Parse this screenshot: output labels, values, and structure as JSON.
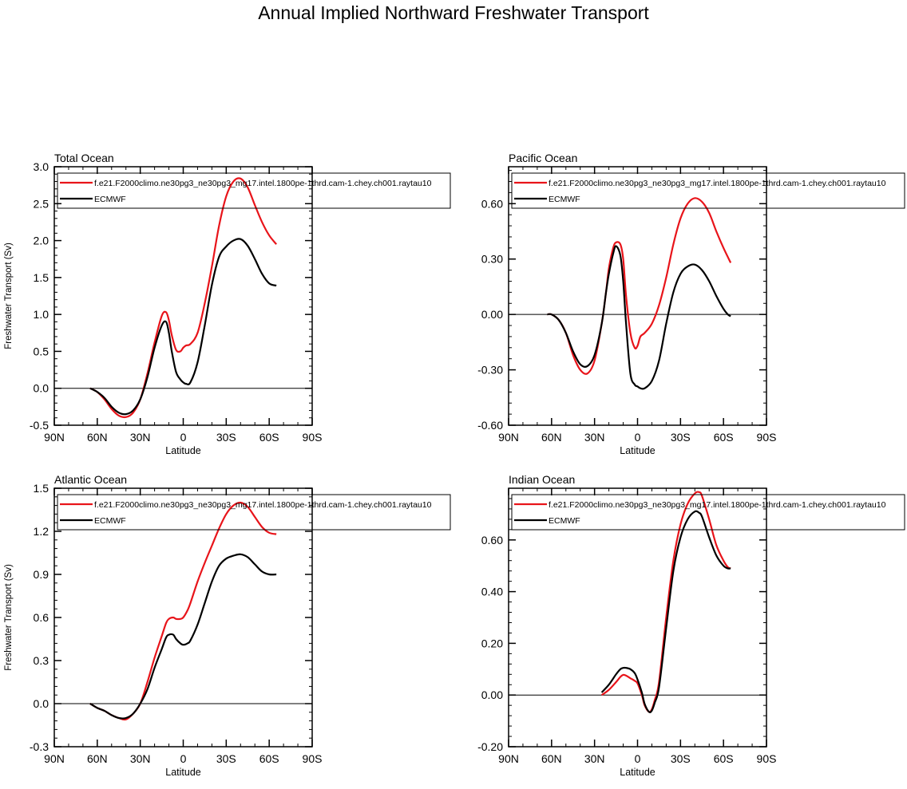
{
  "title": "Annual Implied Northward Freshwater Transport",
  "colors": {
    "model": "#e8141a",
    "obs": "#000000",
    "frame": "#000000"
  },
  "legend": {
    "model_label": "f.e21.F2000climo.ne30pg3_ne30pg3_mg17.intel.1800pe-1thrd.cam-1.chey.ch001.raytau10",
    "obs_label": "ECMWF"
  },
  "chart_data": [
    {
      "type": "line",
      "title": "Total Ocean",
      "xlabel": "Latitude",
      "ylabel": "Freshwater Transport (Sv)",
      "xlim": [
        90,
        -90
      ],
      "ylim": [
        -0.5,
        3.0
      ],
      "xticks": [
        90,
        60,
        30,
        0,
        -30,
        -60,
        -90
      ],
      "xtick_labels": [
        "90N",
        "60N",
        "30N",
        "0",
        "30S",
        "60S",
        "90S"
      ],
      "yticks": [
        -0.5,
        0,
        0.5,
        1,
        1.5,
        2,
        2.5,
        3
      ],
      "ytick_labels": [
        "-0.5",
        "0.0",
        "0.5",
        "1.0",
        "1.5",
        "2.0",
        "2.5",
        "3.0"
      ],
      "legend_position": "top-left",
      "series": [
        {
          "name": "f.e21.F2000climo.ne30pg3_ne30pg3_mg17.intel.1800pe-1thrd.cam-1.chey.ch001.raytau10",
          "color": "#e8141a",
          "x": [
            65,
            60,
            55,
            50,
            45,
            40,
            35,
            30,
            25,
            20,
            15,
            12,
            10,
            8,
            5,
            2,
            0,
            -2,
            -5,
            -10,
            -15,
            -20,
            -25,
            -30,
            -35,
            -40,
            -45,
            -50,
            -55,
            -60,
            -65
          ],
          "y": [
            0.0,
            -0.05,
            -0.15,
            -0.28,
            -0.37,
            -0.39,
            -0.33,
            -0.15,
            0.2,
            0.62,
            0.98,
            1.03,
            0.92,
            0.72,
            0.52,
            0.5,
            0.55,
            0.58,
            0.6,
            0.75,
            1.15,
            1.65,
            2.2,
            2.6,
            2.8,
            2.84,
            2.72,
            2.48,
            2.25,
            2.07,
            1.95
          ]
        },
        {
          "name": "ECMWF",
          "color": "#000000",
          "x": [
            65,
            60,
            55,
            50,
            45,
            40,
            35,
            30,
            25,
            20,
            15,
            12,
            10,
            8,
            5,
            2,
            0,
            -2,
            -5,
            -10,
            -15,
            -20,
            -25,
            -30,
            -35,
            -40,
            -45,
            -50,
            -55,
            -60,
            -65
          ],
          "y": [
            0.0,
            -0.05,
            -0.13,
            -0.25,
            -0.33,
            -0.35,
            -0.3,
            -0.15,
            0.15,
            0.55,
            0.85,
            0.9,
            0.75,
            0.5,
            0.22,
            0.12,
            0.08,
            0.06,
            0.08,
            0.35,
            0.85,
            1.4,
            1.78,
            1.92,
            2.0,
            2.02,
            1.93,
            1.75,
            1.55,
            1.42,
            1.39
          ]
        }
      ]
    },
    {
      "type": "line",
      "title": "Pacific Ocean",
      "xlabel": "Latitude",
      "ylabel": "",
      "xlim": [
        90,
        -90
      ],
      "ylim": [
        -0.6,
        0.8
      ],
      "xticks": [
        90,
        60,
        30,
        0,
        -30,
        -60,
        -90
      ],
      "xtick_labels": [
        "90N",
        "60N",
        "30N",
        "0",
        "30S",
        "60S",
        "90S"
      ],
      "yticks": [
        -0.6,
        -0.3,
        0,
        0.3,
        0.6
      ],
      "ytick_labels": [
        "-0.60",
        "-0.30",
        "0.00",
        "0.30",
        "0.60"
      ],
      "legend_position": "top-left",
      "series": [
        {
          "name": "f.e21.F2000climo.ne30pg3_ne30pg3_mg17.intel.1800pe-1thrd.cam-1.chey.ch001.raytau10",
          "color": "#e8141a",
          "x": [
            63,
            60,
            55,
            50,
            45,
            40,
            35,
            30,
            25,
            22,
            20,
            17,
            15,
            12,
            10,
            8,
            5,
            2,
            0,
            -2,
            -5,
            -10,
            -15,
            -20,
            -25,
            -30,
            -35,
            -40,
            -45,
            -50,
            -55,
            -60,
            -65
          ],
          "y": [
            0.0,
            0.0,
            -0.03,
            -0.1,
            -0.22,
            -0.3,
            -0.32,
            -0.25,
            -0.05,
            0.12,
            0.25,
            0.36,
            0.39,
            0.38,
            0.3,
            0.1,
            -0.1,
            -0.18,
            -0.17,
            -0.12,
            -0.1,
            -0.05,
            0.05,
            0.2,
            0.38,
            0.52,
            0.6,
            0.63,
            0.61,
            0.55,
            0.45,
            0.36,
            0.28
          ]
        },
        {
          "name": "ECMWF",
          "color": "#000000",
          "x": [
            63,
            60,
            55,
            50,
            45,
            40,
            35,
            30,
            25,
            22,
            20,
            17,
            15,
            12,
            10,
            8,
            5,
            2,
            0,
            -2,
            -5,
            -10,
            -15,
            -20,
            -25,
            -30,
            -35,
            -40,
            -45,
            -50,
            -55,
            -60,
            -63,
            -65
          ],
          "y": [
            0.0,
            0.0,
            -0.03,
            -0.1,
            -0.2,
            -0.27,
            -0.28,
            -0.22,
            -0.05,
            0.12,
            0.22,
            0.33,
            0.37,
            0.32,
            0.18,
            -0.05,
            -0.32,
            -0.38,
            -0.39,
            -0.4,
            -0.4,
            -0.36,
            -0.25,
            -0.05,
            0.12,
            0.22,
            0.26,
            0.27,
            0.24,
            0.18,
            0.1,
            0.03,
            0.0,
            -0.01
          ]
        }
      ]
    },
    {
      "type": "line",
      "title": "Atlantic Ocean",
      "xlabel": "Latitude",
      "ylabel": "Freshwater Transport (Sv)",
      "xlim": [
        90,
        -90
      ],
      "ylim": [
        -0.3,
        1.5
      ],
      "xticks": [
        90,
        60,
        30,
        0,
        -30,
        -60,
        -90
      ],
      "xtick_labels": [
        "90N",
        "60N",
        "30N",
        "0",
        "30S",
        "60S",
        "90S"
      ],
      "yticks": [
        -0.3,
        0,
        0.3,
        0.6,
        0.9,
        1.2,
        1.5
      ],
      "ytick_labels": [
        "-0.3",
        "0.0",
        "0.3",
        "0.6",
        "0.9",
        "1.2",
        "1.5"
      ],
      "legend_position": "top-left",
      "series": [
        {
          "name": "f.e21.F2000climo.ne30pg3_ne30pg3_mg17.intel.1800pe-1thrd.cam-1.chey.ch001.raytau10",
          "color": "#e8141a",
          "x": [
            65,
            60,
            55,
            50,
            45,
            40,
            35,
            30,
            25,
            20,
            15,
            12,
            10,
            7,
            5,
            2,
            0,
            -3,
            -5,
            -10,
            -15,
            -20,
            -25,
            -30,
            -35,
            -40,
            -45,
            -50,
            -55,
            -60,
            -65
          ],
          "y": [
            0.0,
            -0.03,
            -0.05,
            -0.08,
            -0.1,
            -0.11,
            -0.07,
            0.0,
            0.15,
            0.32,
            0.47,
            0.56,
            0.59,
            0.6,
            0.59,
            0.59,
            0.6,
            0.65,
            0.7,
            0.85,
            0.98,
            1.1,
            1.22,
            1.32,
            1.38,
            1.4,
            1.37,
            1.3,
            1.23,
            1.19,
            1.18
          ]
        },
        {
          "name": "ECMWF",
          "color": "#000000",
          "x": [
            65,
            60,
            55,
            50,
            45,
            40,
            35,
            30,
            25,
            20,
            15,
            12,
            10,
            7,
            5,
            2,
            0,
            -3,
            -5,
            -10,
            -15,
            -20,
            -25,
            -30,
            -35,
            -40,
            -45,
            -50,
            -55,
            -60,
            -65
          ],
          "y": [
            0.0,
            -0.03,
            -0.05,
            -0.08,
            -0.1,
            -0.1,
            -0.07,
            0.0,
            0.1,
            0.25,
            0.38,
            0.46,
            0.48,
            0.48,
            0.45,
            0.42,
            0.41,
            0.42,
            0.44,
            0.55,
            0.7,
            0.85,
            0.96,
            1.01,
            1.03,
            1.04,
            1.02,
            0.97,
            0.92,
            0.9,
            0.9
          ]
        }
      ]
    },
    {
      "type": "line",
      "title": "Indian Ocean",
      "xlabel": "Latitude",
      "ylabel": "",
      "xlim": [
        90,
        -90
      ],
      "ylim": [
        -0.2,
        0.8
      ],
      "xticks": [
        90,
        60,
        30,
        0,
        -30,
        -60,
        -90
      ],
      "xtick_labels": [
        "90N",
        "60N",
        "30N",
        "0",
        "30S",
        "60S",
        "90S"
      ],
      "yticks": [
        -0.2,
        0,
        0.2,
        0.4,
        0.6
      ],
      "ytick_labels": [
        "-0.20",
        "0.00",
        "0.20",
        "0.40",
        "0.60"
      ],
      "legend_position": "top-left",
      "series": [
        {
          "name": "f.e21.F2000climo.ne30pg3_ne30pg3_mg17.intel.1800pe-1thrd.cam-1.chey.ch001.raytau10",
          "color": "#e8141a",
          "x": [
            25,
            20,
            15,
            12,
            10,
            8,
            5,
            2,
            0,
            -3,
            -5,
            -8,
            -10,
            -12,
            -15,
            -20,
            -25,
            -30,
            -35,
            -40,
            -43,
            -45,
            -50,
            -55,
            -60,
            -63,
            -65
          ],
          "y": [
            0.0,
            0.02,
            0.05,
            0.07,
            0.078,
            0.075,
            0.065,
            0.055,
            0.045,
            0.0,
            -0.04,
            -0.065,
            -0.055,
            -0.02,
            0.05,
            0.3,
            0.52,
            0.66,
            0.74,
            0.78,
            0.785,
            0.77,
            0.68,
            0.58,
            0.52,
            0.495,
            0.49
          ]
        },
        {
          "name": "ECMWF",
          "color": "#000000",
          "x": [
            25,
            20,
            15,
            12,
            10,
            8,
            5,
            2,
            0,
            -3,
            -5,
            -8,
            -10,
            -12,
            -15,
            -20,
            -25,
            -30,
            -35,
            -40,
            -43,
            -45,
            -50,
            -55,
            -60,
            -63,
            -65
          ],
          "y": [
            0.01,
            0.04,
            0.08,
            0.1,
            0.105,
            0.105,
            0.1,
            0.085,
            0.06,
            0.01,
            -0.035,
            -0.065,
            -0.06,
            -0.03,
            0.03,
            0.26,
            0.48,
            0.61,
            0.68,
            0.71,
            0.705,
            0.69,
            0.61,
            0.54,
            0.5,
            0.49,
            0.49
          ]
        }
      ]
    }
  ]
}
